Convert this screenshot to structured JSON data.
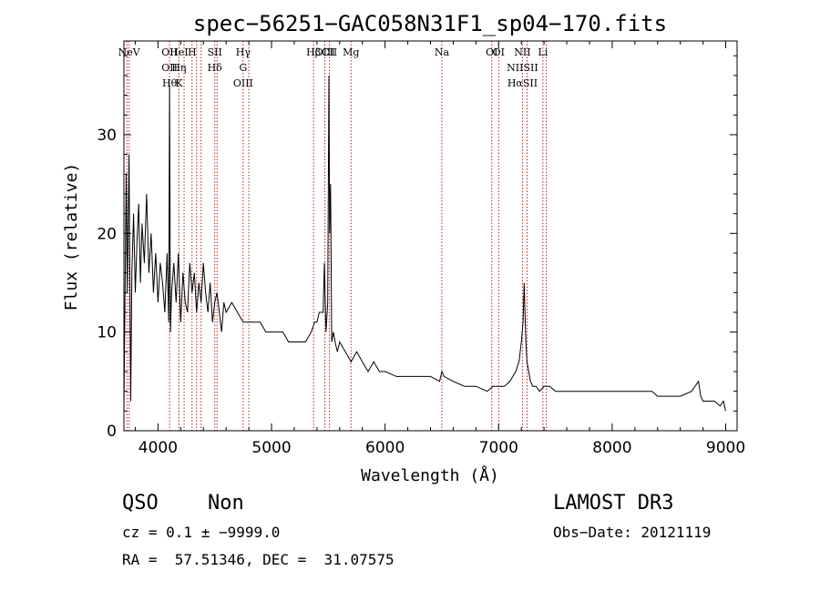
{
  "chart_data": {
    "type": "line",
    "title": "spec−56251−GAC058N31F1_sp04−170.fits",
    "xlabel": "Wavelength (Å)",
    "ylabel": "Flux (relative)",
    "xlim": [
      3700,
      9100
    ],
    "ylim": [
      0,
      39.5
    ],
    "x_ticks": [
      4000,
      5000,
      6000,
      7000,
      8000,
      9000
    ],
    "y_ticks": [
      0,
      10,
      20,
      30
    ],
    "grid": false,
    "line_color": "#000000",
    "marker_color": "#b22222",
    "series": [
      {
        "x": [
          3700,
          3720,
          3730,
          3745,
          3760,
          3770,
          3785,
          3800,
          3815,
          3830,
          3845,
          3860,
          3880,
          3900,
          3920,
          3940,
          3960,
          3980,
          4000,
          4020,
          4040,
          4060,
          4080,
          4095,
          4102,
          4110,
          4120,
          4140,
          4160,
          4180,
          4200,
          4220,
          4240,
          4260,
          4280,
          4300,
          4320,
          4340,
          4360,
          4380,
          4400,
          4420,
          4440,
          4460,
          4480,
          4500,
          4520,
          4540,
          4560,
          4580,
          4600,
          4650,
          4700,
          4750,
          4800,
          4850,
          4900,
          4950,
          5000,
          5050,
          5100,
          5150,
          5200,
          5250,
          5300,
          5350,
          5380,
          5400,
          5420,
          5440,
          5455,
          5465,
          5480,
          5495,
          5505,
          5512,
          5520,
          5530,
          5545,
          5560,
          5580,
          5600,
          5650,
          5700,
          5750,
          5800,
          5850,
          5900,
          5950,
          6000,
          6100,
          6200,
          6300,
          6400,
          6480,
          6500,
          6520,
          6600,
          6700,
          6800,
          6900,
          6950,
          7000,
          7050,
          7100,
          7150,
          7180,
          7200,
          7215,
          7225,
          7232,
          7240,
          7250,
          7265,
          7280,
          7300,
          7330,
          7360,
          7400,
          7450,
          7500,
          7600,
          7700,
          7800,
          7900,
          8000,
          8100,
          8200,
          8300,
          8350,
          8400,
          8500,
          8600,
          8700,
          8760,
          8780,
          8800,
          8850,
          8900,
          8950,
          8980,
          9000
        ],
        "y": [
          2,
          26,
          14,
          28,
          3,
          16,
          22,
          14,
          19,
          23,
          15,
          21,
          17,
          24,
          16,
          20,
          14,
          18,
          13,
          17,
          15,
          12,
          18,
          11,
          35,
          10,
          14,
          17,
          13,
          18,
          11,
          16,
          13,
          12,
          17,
          14,
          16,
          12,
          15,
          13,
          17,
          14,
          12,
          15,
          11,
          13,
          14,
          12,
          10,
          13,
          12,
          13,
          12,
          11,
          11,
          11,
          11,
          10,
          10,
          10,
          10,
          9,
          9,
          9,
          9,
          10,
          11,
          11,
          12,
          12,
          12,
          17,
          10,
          13,
          36,
          20,
          25,
          9,
          10,
          9,
          8,
          9,
          8,
          7,
          8,
          7,
          6,
          7,
          6,
          6,
          5.5,
          5.5,
          5.5,
          5.5,
          5,
          6,
          5.5,
          5,
          4.5,
          4.5,
          4,
          4.5,
          4.5,
          4.5,
          5,
          6,
          7,
          9,
          11,
          15,
          12,
          9,
          7,
          6,
          5,
          4.5,
          4.5,
          4,
          4.5,
          4.5,
          4,
          4,
          4,
          4,
          4,
          4,
          4,
          4,
          4,
          4,
          3.5,
          3.5,
          3.5,
          4,
          5,
          3.5,
          3,
          3,
          3,
          2.5,
          3,
          2
        ]
      }
    ],
    "line_markers": [
      {
        "x": 3746,
        "labels": [
          "NeV"
        ]
      },
      {
        "x": 3727,
        "labels": []
      },
      {
        "x": 4102,
        "labels": [
          "OII",
          "OII",
          "Hθ"
        ]
      },
      {
        "x": 4185,
        "labels": [
          "HeI",
          "Hη",
          "K"
        ]
      },
      {
        "x": 4230,
        "labels": []
      },
      {
        "x": 4300,
        "labels": [
          "H"
        ]
      },
      {
        "x": 4340,
        "labels": []
      },
      {
        "x": 4380,
        "labels": []
      },
      {
        "x": 4500,
        "labels": [
          "SII",
          "Hδ"
        ]
      },
      {
        "x": 4520,
        "labels": []
      },
      {
        "x": 4750,
        "labels": [
          "Hγ",
          "G",
          "OIII"
        ]
      },
      {
        "x": 4800,
        "labels": []
      },
      {
        "x": 5370,
        "labels": [
          "Hβ"
        ]
      },
      {
        "x": 5470,
        "labels": [
          "OIII"
        ]
      },
      {
        "x": 5510,
        "labels": [
          "CII"
        ]
      },
      {
        "x": 5700,
        "labels": [
          "Mg"
        ]
      },
      {
        "x": 6500,
        "labels": [
          "Na"
        ]
      },
      {
        "x": 6940,
        "labels": [
          "OI"
        ]
      },
      {
        "x": 7000,
        "labels": [
          "OI"
        ]
      },
      {
        "x": 7210,
        "labels": [
          "NII",
          "NIISII",
          "HαSII"
        ]
      },
      {
        "x": 7250,
        "labels": []
      },
      {
        "x": 7390,
        "labels": [
          "Li"
        ]
      },
      {
        "x": 7420,
        "labels": []
      }
    ]
  },
  "info": {
    "class": "QSO",
    "subclass": "Non",
    "survey": "LAMOST DR3",
    "cz": "cz = 0.1 ± −9999.0",
    "obs_date": "Obs−Date: 20121119",
    "coords": "RA =  57.51346, DEC =  31.07575"
  }
}
